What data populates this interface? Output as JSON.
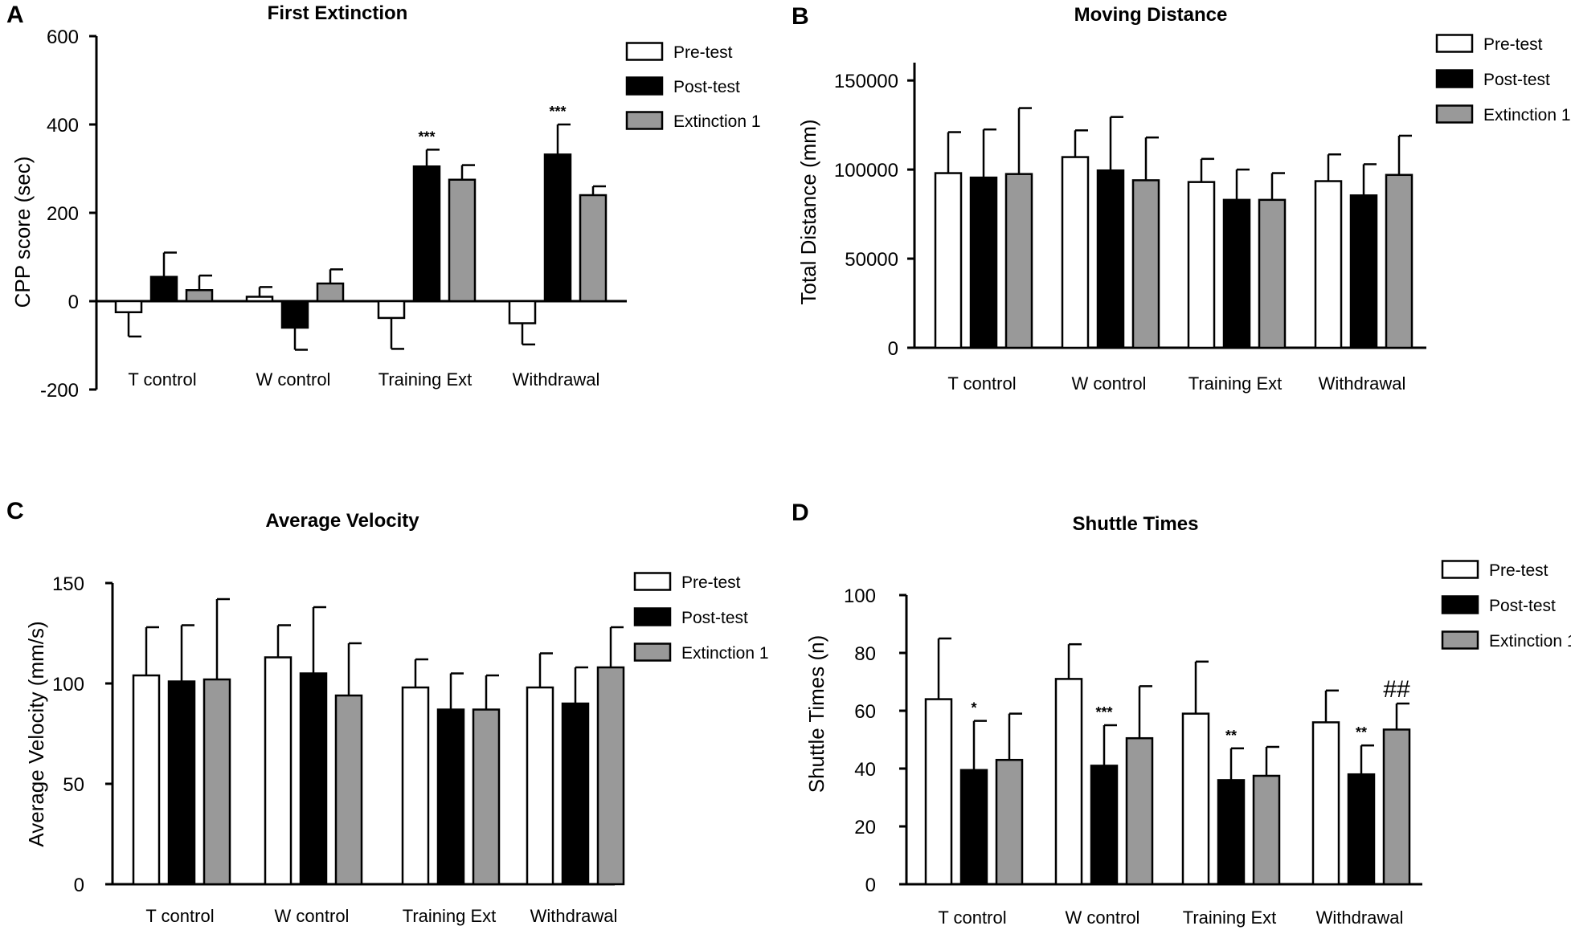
{
  "chart_data": [
    {
      "panel": "A",
      "type": "bar",
      "title": "First Extinction",
      "xlabel": "",
      "ylabel": "CPP score (sec)",
      "ylim": [
        -200,
        600
      ],
      "yticks": [
        "600",
        "400",
        "200",
        "0",
        "-200"
      ],
      "categories": [
        "T control",
        "W control",
        "Training Ext",
        "Withdrawal"
      ],
      "series": [
        {
          "name": "Pre-test",
          "values": [
            -25,
            10,
            -38,
            -50
          ],
          "errors": [
            55,
            22,
            70,
            48
          ]
        },
        {
          "name": "Post-test",
          "values": [
            55,
            -60,
            305,
            332
          ],
          "errors": [
            55,
            50,
            38,
            68
          ]
        },
        {
          "name": "Extinction 1",
          "values": [
            25,
            40,
            275,
            240
          ],
          "errors": [
            33,
            32,
            33,
            20
          ]
        }
      ],
      "annotations": [
        {
          "category": "Training Ext",
          "series": "Post-test",
          "text": "***"
        },
        {
          "category": "Withdrawal",
          "series": "Post-test",
          "text": "***"
        }
      ],
      "legend": "top-right"
    },
    {
      "panel": "B",
      "type": "bar",
      "title": "Moving Distance",
      "xlabel": "",
      "ylabel": "Total Distance (mm)",
      "ylim": [
        0,
        160000
      ],
      "yticks": [
        "150000",
        "100000",
        "50000",
        "0"
      ],
      "categories": [
        "T control",
        "W control",
        "Training Ext",
        "Withdrawal"
      ],
      "series": [
        {
          "name": "Pre-test",
          "values": [
            98000,
            107000,
            93000,
            93500
          ],
          "errors": [
            23000,
            15000,
            13000,
            15000
          ]
        },
        {
          "name": "Post-test",
          "values": [
            95500,
            99500,
            83000,
            85500
          ],
          "errors": [
            27000,
            30000,
            17000,
            17500
          ]
        },
        {
          "name": "Extinction 1",
          "values": [
            97500,
            94000,
            83000,
            97000
          ],
          "errors": [
            37000,
            24000,
            15000,
            22000
          ]
        }
      ],
      "annotations": [],
      "legend": "top-right"
    },
    {
      "panel": "C",
      "type": "bar",
      "title": "Average Velocity",
      "xlabel": "",
      "ylabel": "Average Velocity  (mm/s)",
      "ylim": [
        0,
        150
      ],
      "yticks": [
        "150",
        "100",
        "50",
        "0"
      ],
      "categories": [
        "T control",
        "W control",
        "Training Ext",
        "Withdrawal"
      ],
      "series": [
        {
          "name": "Pre-test",
          "values": [
            104,
            113,
            98,
            98
          ],
          "errors": [
            24,
            16,
            14,
            17
          ]
        },
        {
          "name": "Post-test",
          "values": [
            101,
            105,
            87,
            90
          ],
          "errors": [
            28,
            33,
            18,
            18
          ]
        },
        {
          "name": "Extinction 1",
          "values": [
            102,
            94,
            87,
            108
          ],
          "errors": [
            40,
            26,
            17,
            20
          ]
        }
      ],
      "annotations": [],
      "legend": "top-right"
    },
    {
      "panel": "D",
      "type": "bar",
      "title": "Shuttle Times",
      "xlabel": "",
      "ylabel": "Shuttle Times (n)",
      "ylim": [
        0,
        100
      ],
      "yticks": [
        "100",
        "80",
        "60",
        "40",
        "20",
        "0"
      ],
      "categories": [
        "T control",
        "W control",
        "Training Ext",
        "Withdrawal"
      ],
      "series": [
        {
          "name": "Pre-test",
          "values": [
            64,
            71,
            59,
            56
          ],
          "errors": [
            21,
            12,
            18,
            11
          ]
        },
        {
          "name": "Post-test",
          "values": [
            39.5,
            41,
            36,
            38
          ],
          "errors": [
            17,
            14,
            11,
            10
          ]
        },
        {
          "name": "Extinction 1",
          "values": [
            43,
            50.5,
            37.5,
            53.5
          ],
          "errors": [
            16,
            18,
            10,
            9
          ]
        }
      ],
      "annotations": [
        {
          "category": "T control",
          "series": "Post-test",
          "text": "*"
        },
        {
          "category": "W control",
          "series": "Post-test",
          "text": "***"
        },
        {
          "category": "Training Ext",
          "series": "Post-test",
          "text": "**"
        },
        {
          "category": "Withdrawal",
          "series": "Post-test",
          "text": "**"
        },
        {
          "category": "Withdrawal",
          "series": "Extinction 1",
          "text": "##"
        }
      ],
      "legend": "top-right"
    }
  ],
  "colors": {
    "pre": "#ffffff",
    "post": "#000000",
    "ext": "#999999",
    "axis": "#000000"
  }
}
